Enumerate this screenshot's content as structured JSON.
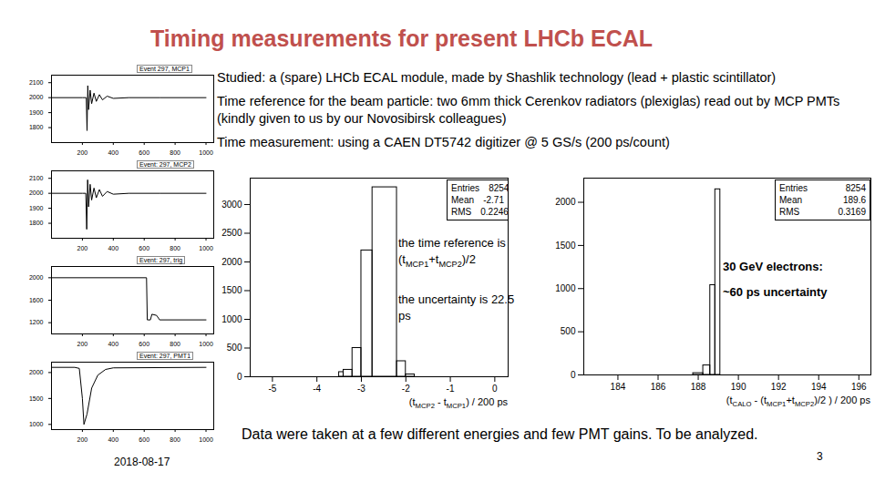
{
  "title": "Timing measurements for present LHCb ECAL",
  "bullets": [
    "Studied: a (spare) LHCb ECAL module, made by Shashlik technology (lead + plastic scintillator)",
    "Time reference for the beam particle: two 6mm thick Cerenkov radiators (plexiglas) read out by MCP PMTs (kindly given to us by our Novosibirsk colleagues)",
    "Time measurement: using a CAEN DT5742 digitizer @ 5 GS/s (200 ps/count)"
  ],
  "footer_note": "Data were taken at a few different energies and few PMT gains. To be analyzed.",
  "date": "2018-08-17",
  "page_number": 3,
  "chart_data": [
    {
      "type": "line",
      "title": "Event 297, MCP1",
      "color": "#000000",
      "x": [
        0,
        200,
        225,
        230,
        235,
        240,
        250,
        260,
        275,
        290,
        310,
        330,
        360,
        400,
        500,
        700,
        1000
      ],
      "values": [
        2000,
        2000,
        2000,
        1780,
        2080,
        1920,
        2050,
        1960,
        2030,
        1975,
        2020,
        1985,
        2010,
        1995,
        2000,
        2000,
        2000
      ],
      "xlim": [
        0,
        1050
      ],
      "xticks": [
        200,
        400,
        600,
        800,
        1000
      ],
      "ylim": [
        1700,
        2150
      ],
      "yticks": [
        1800,
        1900,
        2000,
        2100
      ]
    },
    {
      "type": "line",
      "title": "Event: 297, MCP2",
      "color": "#000000",
      "x": [
        0,
        200,
        222,
        228,
        234,
        240,
        250,
        260,
        275,
        290,
        310,
        330,
        360,
        400,
        500,
        700,
        1000
      ],
      "values": [
        2000,
        2000,
        2000,
        1760,
        2090,
        1910,
        2060,
        1955,
        2035,
        1970,
        2025,
        1980,
        2012,
        1994,
        2000,
        2000,
        2000
      ],
      "xlim": [
        0,
        1050
      ],
      "xticks": [
        200,
        400,
        600,
        800,
        1000
      ],
      "ylim": [
        1700,
        2150
      ],
      "yticks": [
        1800,
        1900,
        2000,
        2100
      ]
    },
    {
      "type": "line",
      "title": "Event: 297, trig",
      "color": "#000000",
      "x": [
        0,
        615,
        620,
        640,
        650,
        680,
        700,
        1000
      ],
      "values": [
        2000,
        2000,
        1250,
        1250,
        1350,
        1330,
        1250,
        1250
      ],
      "xlim": [
        0,
        1050
      ],
      "xticks": [
        200,
        400,
        600,
        800,
        1000
      ],
      "ylim": [
        1000,
        2200
      ],
      "yticks": [
        1200,
        1600,
        2000
      ]
    },
    {
      "type": "line",
      "title": "Event: 297, PMT1",
      "color": "#000000",
      "x": [
        0,
        150,
        180,
        200,
        210,
        230,
        260,
        300,
        350,
        400,
        1000
      ],
      "values": [
        2100,
        2100,
        2080,
        1500,
        1000,
        1200,
        1700,
        1950,
        2060,
        2090,
        2100
      ],
      "xlim": [
        0,
        1050
      ],
      "xticks": [
        200,
        400,
        600,
        800,
        1000
      ],
      "ylim": [
        900,
        2200
      ],
      "yticks": [
        1000,
        1500,
        2000
      ]
    },
    {
      "type": "histogram",
      "color": "#000000",
      "bins": [
        -5,
        -3.5,
        -3.4,
        -3.2,
        -3.0,
        -2.75,
        -2.2,
        -2.0,
        -1.8,
        0
      ],
      "values": [
        0,
        80,
        120,
        500,
        2200,
        3300,
        270,
        40,
        0
      ],
      "xlim": [
        -5.5,
        0.3
      ],
      "xticks": [
        -5,
        -4,
        -3,
        -2,
        -1,
        0
      ],
      "ylim": [
        0,
        3460
      ],
      "yticks": [
        0,
        500,
        1000,
        1500,
        2000,
        2500,
        3000
      ],
      "x_label": [
        {
          "text": "(t"
        },
        {
          "sub": "MCP2"
        },
        {
          "text": " - t"
        },
        {
          "sub": "MCP1"
        },
        {
          "text": ") / 200 ps"
        }
      ],
      "stats": [
        {
          "label": "Entries",
          "value": 8254
        },
        {
          "label": "Mean",
          "value": -2.71
        },
        {
          "label": "RMS",
          "value": 0.2246
        }
      ],
      "annotations": [
        [
          {
            "text": "the time reference is (t"
          },
          {
            "sub": "MCP1"
          },
          {
            "text": "+t"
          },
          {
            "sub": "MCP2"
          },
          {
            "text": ")/2"
          }
        ],
        [
          {
            "text": "the uncertainty is 22.5 ps"
          }
        ]
      ]
    },
    {
      "type": "histogram",
      "color": "#000000",
      "bins": [
        187.75,
        188.25,
        188.6,
        188.85,
        189.1
      ],
      "values": [
        20,
        110,
        1040,
        2150
      ],
      "xlim": [
        182.3,
        196.6
      ],
      "xticks": [
        184,
        186,
        188,
        190,
        192,
        194,
        196
      ],
      "ylim": [
        0,
        2280
      ],
      "yticks": [
        0,
        500,
        1000,
        1500,
        2000
      ],
      "x_label": [
        {
          "text": "(t"
        },
        {
          "sub": "CALO"
        },
        {
          "text": " - (t"
        },
        {
          "sub": "MCP1"
        },
        {
          "text": "+t"
        },
        {
          "sub": "MCP2"
        },
        {
          "text": ")/2 ) / 200 ps"
        }
      ],
      "stats": [
        {
          "label": "Entries",
          "value": 8254
        },
        {
          "label": "Mean",
          "value": 189.6
        },
        {
          "label": "RMS",
          "value": 0.3169
        }
      ],
      "annotations": [
        [
          {
            "text": "30 GeV electrons:"
          }
        ],
        [
          {
            "text": "~60 ps uncertainty"
          }
        ]
      ]
    }
  ]
}
